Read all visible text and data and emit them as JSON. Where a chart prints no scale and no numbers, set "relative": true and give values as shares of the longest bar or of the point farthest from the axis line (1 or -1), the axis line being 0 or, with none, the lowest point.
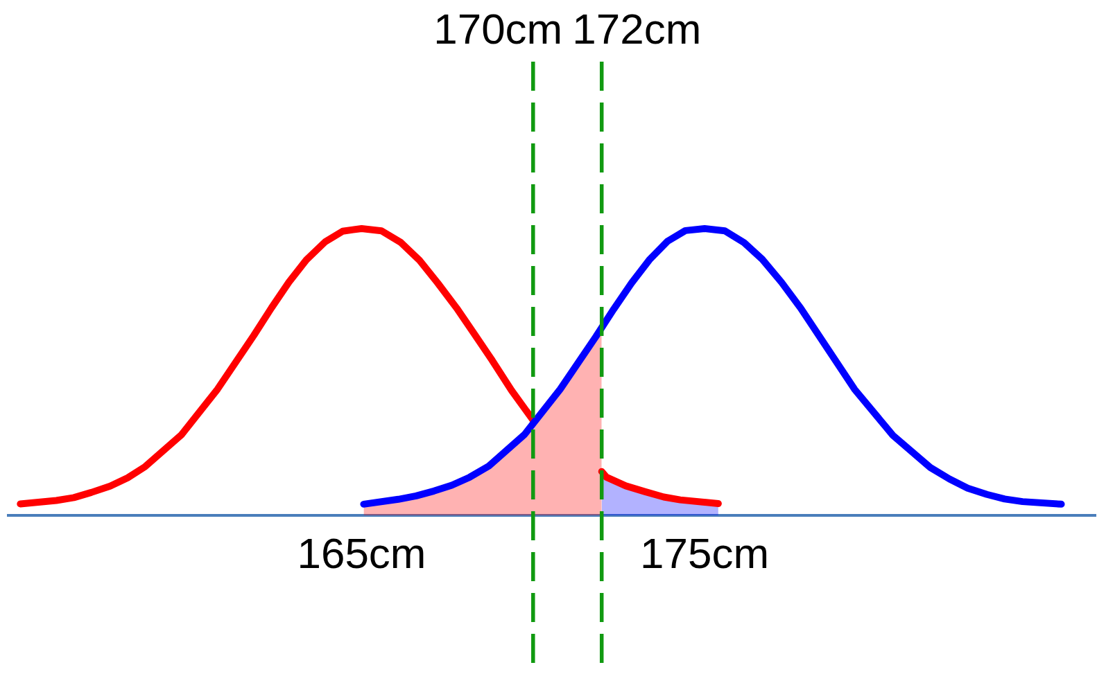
{
  "chart_data": {
    "type": "line",
    "relative": true,
    "marker": "none",
    "line_style": "solid",
    "xlim": [
      154.7,
      186.4
    ],
    "xticks": [
      {
        "value": 165,
        "label": "165cm"
      },
      {
        "value": 175,
        "label": "175cm"
      }
    ],
    "series": [
      {
        "type": "area",
        "color": "#ff0000",
        "x": [
          165.06,
          166.07,
          166.59,
          167.11,
          167.63,
          168.15,
          168.71,
          169.75,
          170.79,
          171.83,
          172
        ],
        "values": [
          0.039,
          0.056,
          0.068,
          0.085,
          0.105,
          0.133,
          0.172,
          0.282,
          0.44,
          0.623,
          0.65
        ]
      },
      {
        "type": "area",
        "color": "#0000ff",
        "x": [
          172,
          172.14,
          172.7,
          173.25,
          173.81,
          174.29,
          175.4
        ],
        "values": [
          0.153,
          0.133,
          0.103,
          0.083,
          0.064,
          0.054,
          0.041
        ]
      },
      {
        "type": "line",
        "color": "#ff0000",
        "x": [
          155.05,
          156.1,
          156.61,
          157.12,
          157.67,
          158.18,
          158.69,
          159.74,
          160.8,
          161.86,
          162.37,
          162.88,
          163.39,
          163.94,
          164.45,
          165,
          165.58,
          166.14,
          166.69,
          167.22,
          167.77,
          168.29,
          168.81,
          169.37,
          170,
          171,
          172,
          172.14,
          172.7,
          173.25,
          173.81,
          174.29,
          175.4
        ],
        "values": [
          0.04,
          0.052,
          0.062,
          0.08,
          0.102,
          0.131,
          0.17,
          0.28,
          0.44,
          0.628,
          0.723,
          0.813,
          0.891,
          0.954,
          0.991,
          1,
          0.992,
          0.952,
          0.889,
          0.81,
          0.723,
          0.632,
          0.54,
          0.436,
          0.332,
          null,
          0.153,
          0.133,
          0.103,
          0.083,
          0.064,
          0.054,
          0.041
        ]
      },
      {
        "type": "line",
        "color": "#0000ff",
        "x": [
          165.06,
          166.07,
          166.59,
          167.11,
          167.63,
          168.15,
          168.71,
          169.75,
          170.79,
          171.83,
          172.35,
          172.87,
          173.39,
          173.92,
          174.44,
          175,
          175.59,
          176.15,
          176.68,
          177.24,
          177.8,
          179.37,
          180.49,
          181.58,
          182.14,
          182.67,
          183.23,
          183.75,
          184.27,
          185.4
        ],
        "values": [
          0.039,
          0.056,
          0.068,
          0.085,
          0.105,
          0.133,
          0.172,
          0.282,
          0.44,
          0.623,
          0.719,
          0.81,
          0.891,
          0.956,
          0.993,
          1,
          0.992,
          0.951,
          0.893,
          0.813,
          0.723,
          0.44,
          0.279,
          0.167,
          0.127,
          0.095,
          0.073,
          0.057,
          0.048,
          0.039
        ]
      }
    ],
    "ref_lines": [
      {
        "axis": "x",
        "value": 170,
        "label": "170cm",
        "color": "#119a11",
        "line_style": "dashed"
      },
      {
        "axis": "x",
        "value": 172,
        "label": "172cm",
        "color": "#119a11",
        "line_style": "dashed"
      }
    ]
  }
}
